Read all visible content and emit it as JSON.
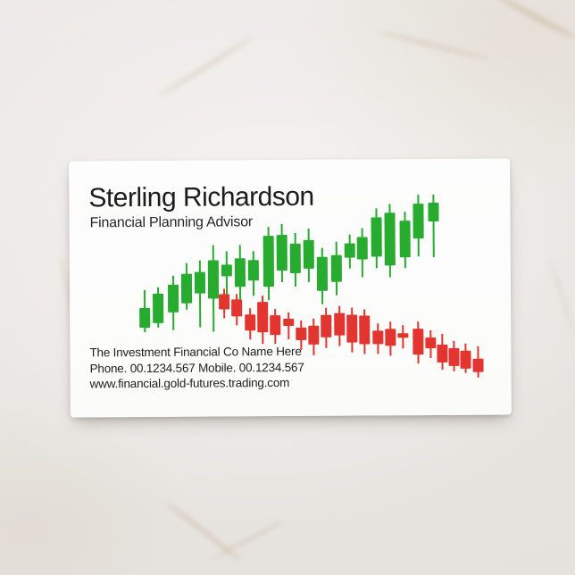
{
  "card": {
    "name": "Sterling Richardson",
    "job_title": "Financial Planning Advisor",
    "company_line": "The Investment Financial Co Name Here",
    "phone_line": "Phone. 00.1234.567 Mobile. 00.1234.567",
    "website_line": "www.financial.gold-futures.trading.com"
  },
  "colors": {
    "bull_green": "#27ac30",
    "bear_red": "#e23530",
    "card_background": "#fdfdfc",
    "text": "#1c1c1c",
    "marble_base": "#eae7e4"
  },
  "chart_data": {
    "type": "candlestick",
    "title": "",
    "axes_visible": false,
    "units": "px-from-card-top-left",
    "series": [
      {
        "name": "uptrend-green",
        "color": "#27ac30",
        "direction": "rising-left-to-right",
        "candles": [
          {
            "x": 84,
            "body": [
              165,
              187
            ],
            "wick": [
              145,
              192
            ]
          },
          {
            "x": 99,
            "body": [
              149,
              182
            ],
            "wick": [
              142,
              187
            ]
          },
          {
            "x": 116,
            "body": [
              139,
              170
            ],
            "wick": [
              129,
              190
            ]
          },
          {
            "x": 131,
            "body": [
              127,
              160
            ],
            "wick": [
              115,
              167
            ]
          },
          {
            "x": 146,
            "body": [
              125,
              149
            ],
            "wick": [
              112,
              187
            ]
          },
          {
            "x": 161,
            "body": [
              112,
              155
            ],
            "wick": [
              95,
              192
            ]
          },
          {
            "x": 176,
            "body": [
              117,
              130
            ],
            "wick": [
              102,
              152
            ]
          },
          {
            "x": 191,
            "body": [
              110,
              142
            ],
            "wick": [
              95,
              162
            ]
          },
          {
            "x": 206,
            "body": [
              112,
              135
            ],
            "wick": [
              102,
              152
            ]
          },
          {
            "x": 223,
            "body": [
              85,
              142
            ],
            "wick": [
              75,
              157
            ]
          },
          {
            "x": 238,
            "body": [
              84,
              124
            ],
            "wick": [
              72,
              137
            ]
          },
          {
            "x": 253,
            "body": [
              94,
              127
            ],
            "wick": [
              82,
              142
            ]
          },
          {
            "x": 268,
            "body": [
              90,
              122
            ],
            "wick": [
              77,
              137
            ]
          },
          {
            "x": 283,
            "body": [
              109,
              147
            ],
            "wick": [
              99,
              162
            ]
          },
          {
            "x": 299,
            "body": [
              107,
              137
            ],
            "wick": [
              92,
              152
            ]
          },
          {
            "x": 314,
            "body": [
              94,
              110
            ],
            "wick": [
              84,
              122
            ]
          },
          {
            "x": 328,
            "body": [
              87,
              112
            ],
            "wick": [
              77,
              132
            ]
          },
          {
            "x": 344,
            "body": [
              65,
              109
            ],
            "wick": [
              55,
              122
            ]
          },
          {
            "x": 359,
            "body": [
              60,
              119
            ],
            "wick": [
              50,
              132
            ]
          },
          {
            "x": 376,
            "body": [
              69,
              110
            ],
            "wick": [
              59,
              122
            ]
          },
          {
            "x": 391,
            "body": [
              50,
              89
            ],
            "wick": [
              40,
              109
            ]
          },
          {
            "x": 408,
            "body": [
              49,
              70
            ],
            "wick": [
              40,
              110
            ]
          }
        ]
      },
      {
        "name": "downtrend-red",
        "color": "#e23530",
        "direction": "falling-left-to-right",
        "candles": [
          {
            "x": 173,
            "body": [
              150,
              167
            ],
            "wick": [
              144,
              177
            ]
          },
          {
            "x": 187,
            "body": [
              156,
              175
            ],
            "wick": [
              150,
              185
            ]
          },
          {
            "x": 202,
            "body": [
              173,
              191
            ],
            "wick": [
              166,
              201
            ]
          },
          {
            "x": 216,
            "body": [
              159,
              193
            ],
            "wick": [
              152,
              206
            ]
          },
          {
            "x": 230,
            "body": [
              174,
              196
            ],
            "wick": [
              167,
              206
            ]
          },
          {
            "x": 245,
            "body": [
              178,
              186
            ],
            "wick": [
              171,
              201
            ]
          },
          {
            "x": 259,
            "body": [
              188,
              202
            ],
            "wick": [
              180,
              213
            ]
          },
          {
            "x": 273,
            "body": [
              186,
              207
            ],
            "wick": [
              178,
              219
            ]
          },
          {
            "x": 287,
            "body": [
              174,
              199
            ],
            "wick": [
              166,
              211
            ]
          },
          {
            "x": 302,
            "body": [
              172,
              197
            ],
            "wick": [
              164,
              209
            ]
          },
          {
            "x": 316,
            "body": [
              174,
              205
            ],
            "wick": [
              166,
              216
            ]
          },
          {
            "x": 330,
            "body": [
              175,
              207
            ],
            "wick": [
              168,
              218
            ]
          },
          {
            "x": 345,
            "body": [
              192,
              207
            ],
            "wick": [
              184,
              218
            ]
          },
          {
            "x": 359,
            "body": [
              190,
              209
            ],
            "wick": [
              182,
              220
            ]
          },
          {
            "x": 373,
            "body": [
              195,
              200
            ],
            "wick": [
              186,
              212
            ]
          },
          {
            "x": 390,
            "body": [
              190,
              219
            ],
            "wick": [
              182,
              229
            ]
          },
          {
            "x": 404,
            "body": [
              200,
              212
            ],
            "wick": [
              192,
              223
            ]
          },
          {
            "x": 417,
            "body": [
              208,
              228
            ],
            "wick": [
              196,
              236
            ]
          },
          {
            "x": 430,
            "body": [
              212,
              232
            ],
            "wick": [
              204,
              238
            ]
          },
          {
            "x": 443,
            "body": [
              215,
              235
            ],
            "wick": [
              207,
              240
            ]
          },
          {
            "x": 457,
            "body": [
              224,
              239
            ],
            "wick": [
              210,
              245
            ]
          }
        ]
      }
    ]
  }
}
